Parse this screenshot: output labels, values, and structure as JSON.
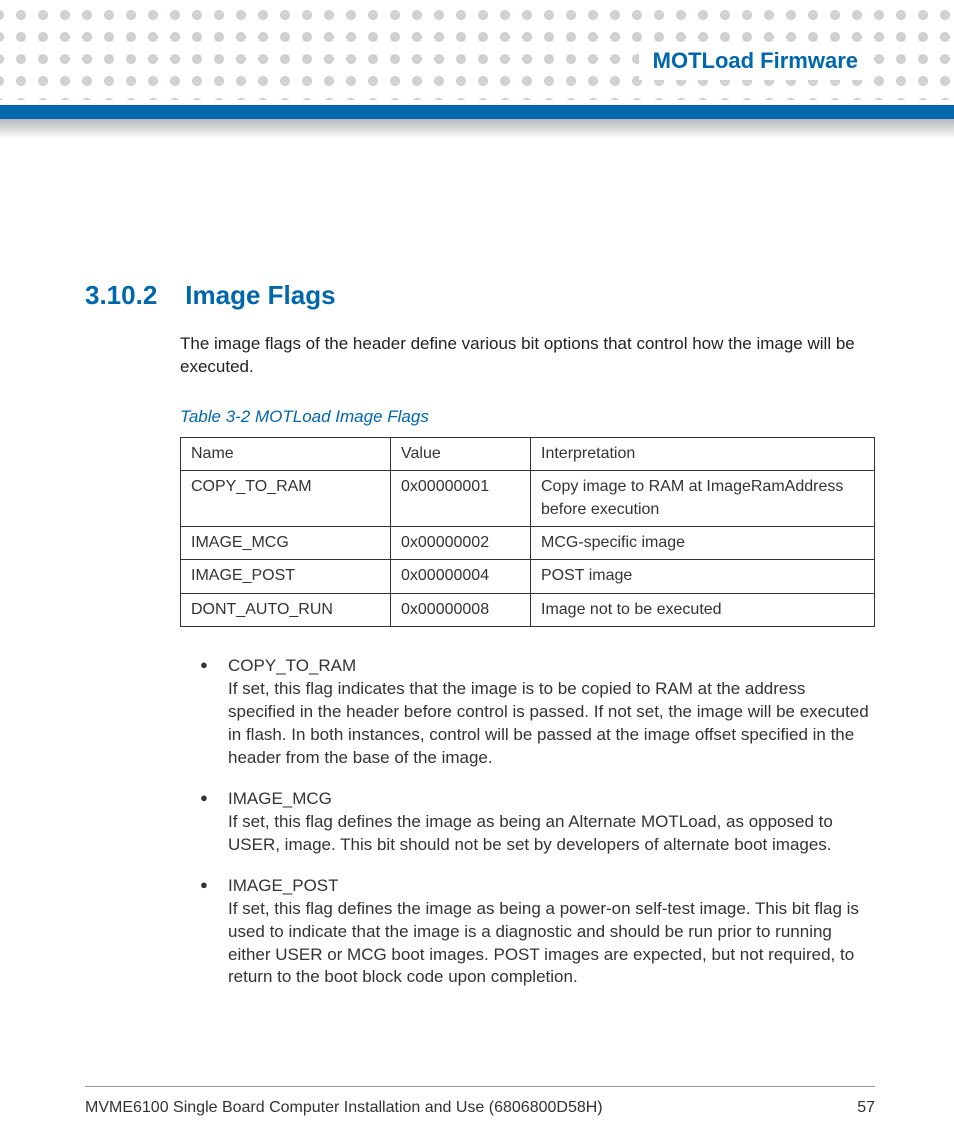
{
  "header": {
    "running_title": "MOTLoad Firmware"
  },
  "colors": {
    "accent": "#0067ac",
    "dot": "#d0d1d3",
    "text": "#333333",
    "border": "#333333"
  },
  "section": {
    "number": "3.10.2",
    "title": "Image Flags",
    "intro": "The image flags of the header define various bit options that control how the image will be executed."
  },
  "table": {
    "caption": "Table 3-2 MOTLoad Image Flags",
    "columns": [
      "Name",
      "Value",
      "Interpretation"
    ],
    "rows": [
      {
        "name": "COPY_TO_RAM",
        "value": "0x00000001",
        "interp": "Copy image to RAM at ImageRamAddress\n before execution"
      },
      {
        "name": "IMAGE_MCG",
        "value": "0x00000002",
        "interp": "MCG-specific image"
      },
      {
        "name": "IMAGE_POST",
        "value": "0x00000004",
        "interp": "POST image"
      },
      {
        "name": "DONT_AUTO_RUN",
        "value": "0x00000008",
        "interp": "Image not to be executed"
      }
    ]
  },
  "bullets": [
    {
      "title": "COPY_TO_RAM",
      "body": "If set, this flag indicates that the image is to be copied to RAM at the address specified in the header before control is passed. If not set, the image will be executed in flash. In both instances, control will be passed at the image offset specified in the header from the base of the image."
    },
    {
      "title": "IMAGE_MCG",
      "body": "If set, this flag defines the image as being an Alternate MOTLoad, as opposed to USER, image. This bit should not be set by developers of alternate boot images."
    },
    {
      "title": "IMAGE_POST",
      "body": "If set, this flag defines the image as being a power-on self-test image. This bit flag is used to indicate that the image is a diagnostic and should be run prior to running either USER or MCG boot images. POST images are expected, but not required, to return to the boot block code upon completion."
    }
  ],
  "footer": {
    "doc_title": "MVME6100 Single Board Computer Installation and Use (6806800D58H)",
    "page_number": "57"
  }
}
